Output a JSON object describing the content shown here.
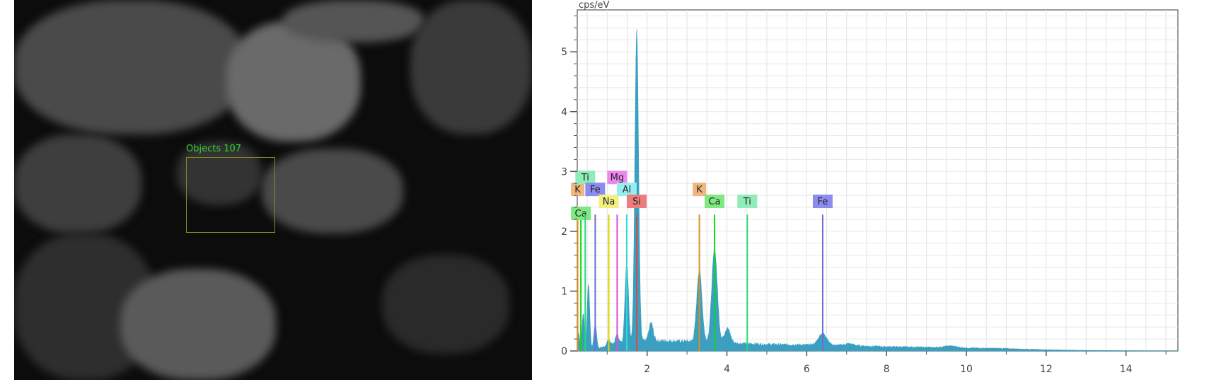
{
  "sem_image": {
    "roi_label": "Objects 107"
  },
  "chart_data": {
    "type": "area",
    "title": "",
    "ylabel": "cps/eV",
    "xlabel": "",
    "xlim": [
      0.25,
      15.3
    ],
    "ylim": [
      0,
      5.7
    ],
    "xticks": [
      2,
      4,
      6,
      8,
      10,
      12,
      14
    ],
    "yticks": [
      0,
      1,
      2,
      3,
      4,
      5
    ],
    "grid": true,
    "spectrum_color": "#3a9fc0",
    "continuum": [
      [
        0.3,
        0.02
      ],
      [
        0.8,
        0.05
      ],
      [
        1.2,
        0.12
      ],
      [
        2,
        0.17
      ],
      [
        3,
        0.16
      ],
      [
        4,
        0.13
      ],
      [
        5,
        0.11
      ],
      [
        6,
        0.1
      ],
      [
        7,
        0.09
      ],
      [
        8,
        0.07
      ],
      [
        9,
        0.06
      ],
      [
        10,
        0.05
      ],
      [
        11,
        0.04
      ],
      [
        12,
        0.02
      ],
      [
        13,
        0.01
      ],
      [
        14,
        0.005
      ],
      [
        15.3,
        0.0
      ]
    ],
    "peaks": [
      {
        "energy": 0.28,
        "cps": 0.3
      },
      {
        "energy": 0.4,
        "cps": 0.6
      },
      {
        "energy": 0.53,
        "cps": 1.08
      },
      {
        "energy": 0.7,
        "cps": 0.4
      },
      {
        "energy": 1.04,
        "cps": 0.1
      },
      {
        "energy": 1.25,
        "cps": 0.15
      },
      {
        "energy": 1.49,
        "cps": 1.35
      },
      {
        "energy": 1.74,
        "cps": 5.2
      },
      {
        "energy": 2.1,
        "cps": 0.3
      },
      {
        "energy": 3.31,
        "cps": 1.2
      },
      {
        "energy": 3.69,
        "cps": 1.55
      },
      {
        "energy": 4.01,
        "cps": 0.25
      },
      {
        "energy": 6.4,
        "cps": 0.2
      },
      {
        "energy": 7.06,
        "cps": 0.03
      },
      {
        "energy": 9.6,
        "cps": 0.03
      }
    ],
    "markers": [
      {
        "element": "K",
        "energy": 0.26,
        "label_y": 2.6,
        "color": "#f0b680"
      },
      {
        "element": "Ca",
        "energy": 0.34,
        "label_y": 2.2,
        "color": "#80e880"
      },
      {
        "element": "Ti",
        "energy": 0.45,
        "label_y": 2.8,
        "color": "#90ecb8"
      },
      {
        "element": "Fe",
        "energy": 0.7,
        "label_y": 2.6,
        "color": "#8c8cf0"
      },
      {
        "element": "Na",
        "energy": 1.04,
        "label_y": 2.4,
        "color": "#f4f080"
      },
      {
        "element": "Mg",
        "energy": 1.25,
        "label_y": 2.8,
        "color": "#ee88ee"
      },
      {
        "element": "Al",
        "energy": 1.49,
        "label_y": 2.6,
        "color": "#98eeee"
      },
      {
        "element": "Si",
        "energy": 1.74,
        "label_y": 2.4,
        "color": "#ee7c7c"
      },
      {
        "element": "K",
        "energy": 3.31,
        "label_y": 2.6,
        "color": "#f0b680"
      },
      {
        "element": "Ca",
        "energy": 3.69,
        "label_y": 2.4,
        "color": "#80e880"
      },
      {
        "element": "Ti",
        "energy": 4.51,
        "label_y": 2.4,
        "color": "#90ecb8"
      },
      {
        "element": "Fe",
        "energy": 6.4,
        "label_y": 2.4,
        "color": "#8c8cf0"
      }
    ]
  }
}
